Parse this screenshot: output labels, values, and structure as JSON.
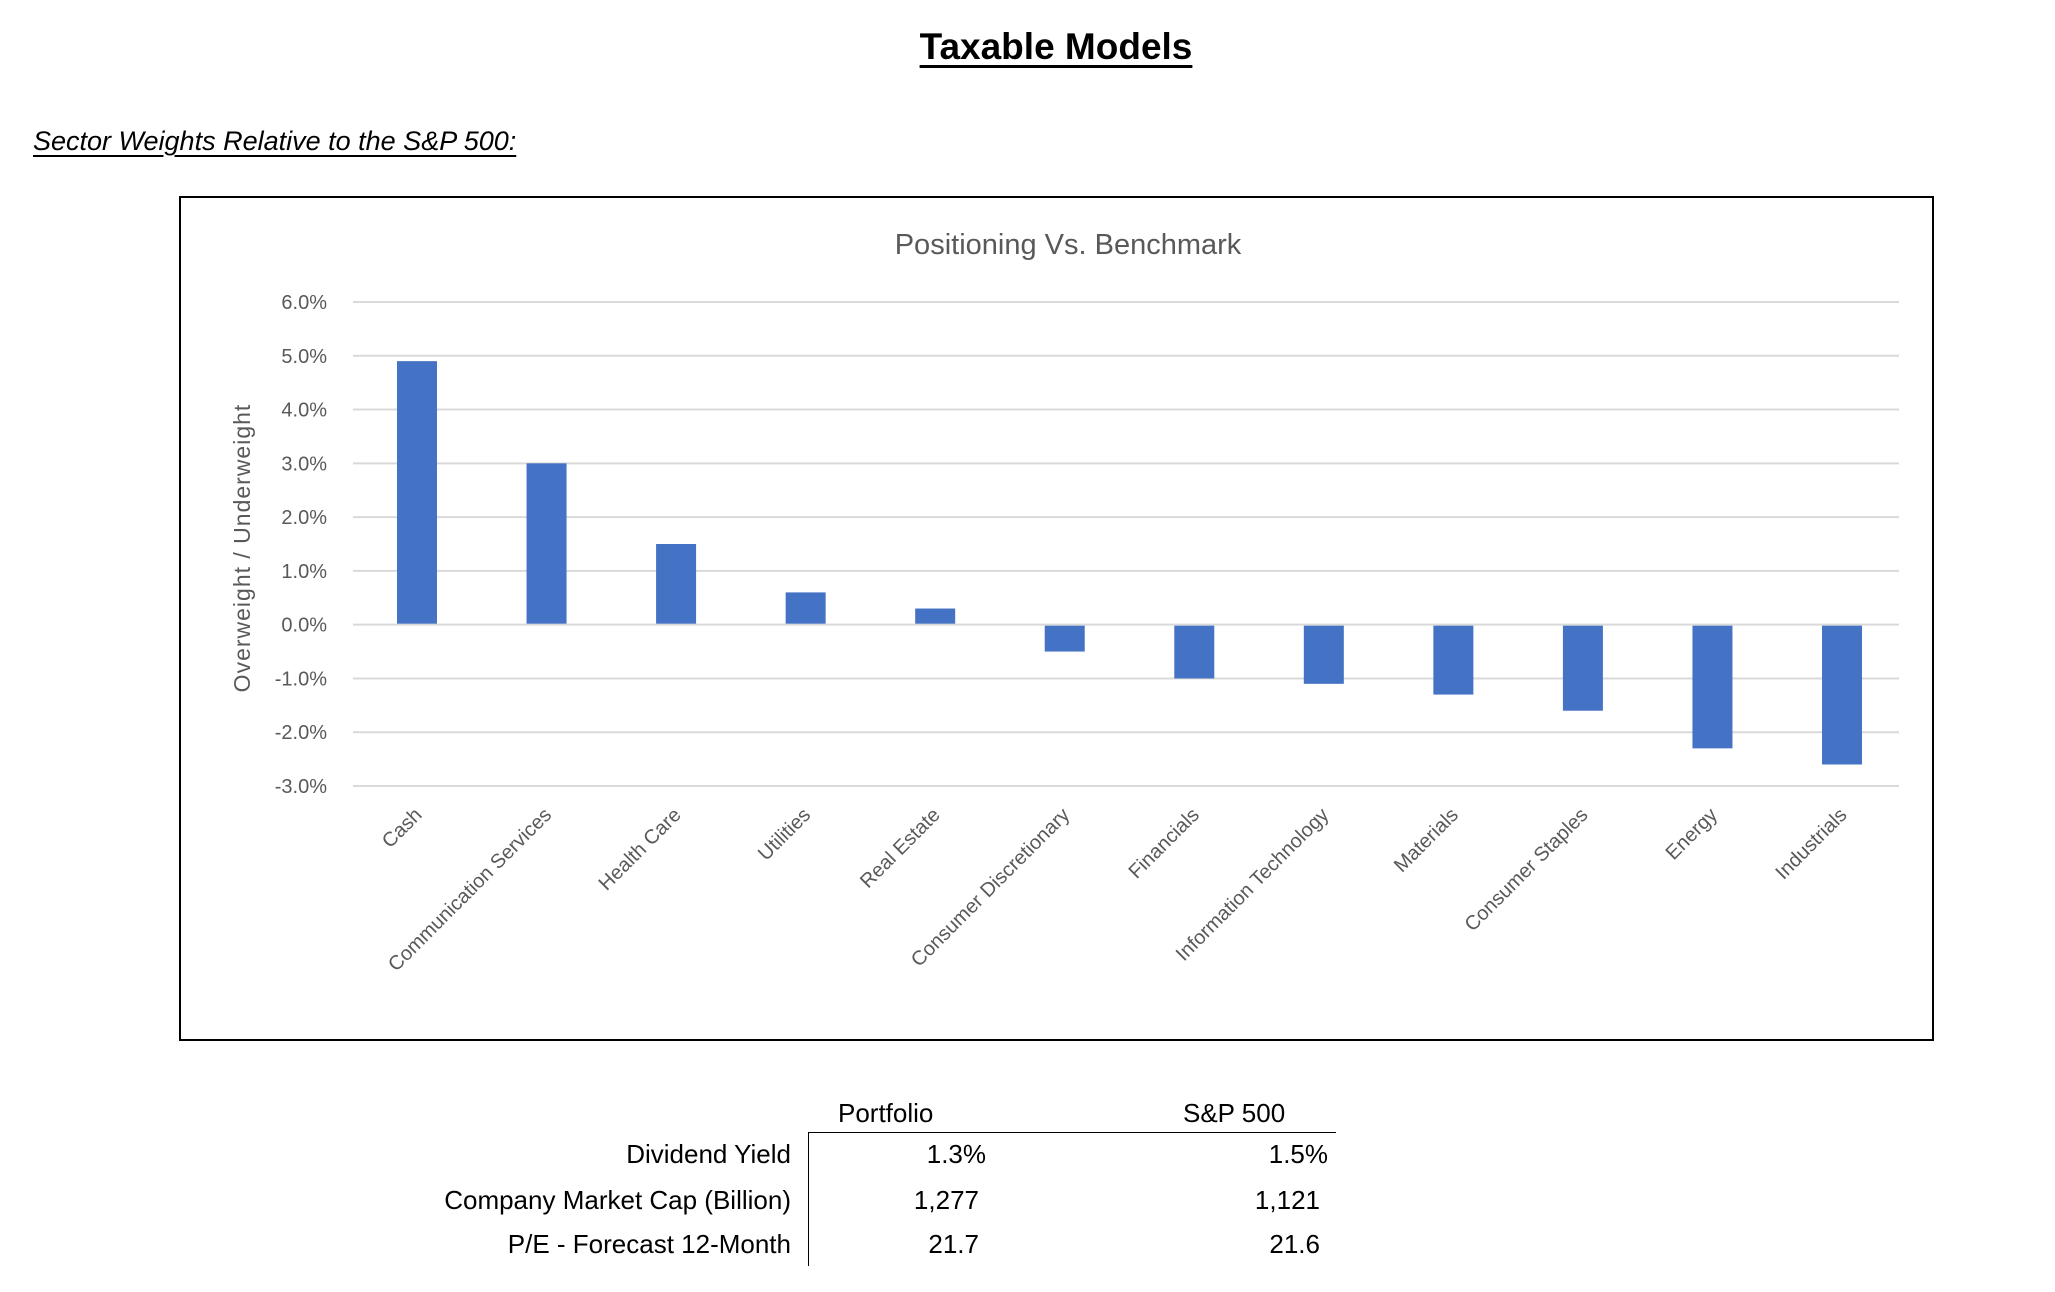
{
  "page": {
    "title": "Taxable Models",
    "subtitle": "Sector Weights Relative to the S&P 500:"
  },
  "chart_data": {
    "type": "bar",
    "title": "Positioning Vs. Benchmark",
    "xlabel": "",
    "ylabel": "Overweight / Underweight",
    "categories": [
      "Cash",
      "Communication Services",
      "Health Care",
      "Utilities",
      "Real Estate",
      "Consumer Discretionary",
      "Financials",
      "Information Technology",
      "Materials",
      "Consumer Staples",
      "Energy",
      "Industrials"
    ],
    "values": [
      4.9,
      3.0,
      1.5,
      0.6,
      0.3,
      -0.5,
      -1.0,
      -1.1,
      -1.3,
      -1.6,
      -2.3,
      -2.6
    ],
    "value_unit": "%",
    "ylim": [
      -3.0,
      6.0
    ],
    "yticks": [
      6.0,
      5.0,
      4.0,
      3.0,
      2.0,
      1.0,
      0.0,
      -1.0,
      -2.0,
      -3.0
    ],
    "ytick_labels": [
      "6.0%",
      "5.0%",
      "4.0%",
      "3.0%",
      "2.0%",
      "1.0%",
      "0.0%",
      "-1.0%",
      "-2.0%",
      "-3.0%"
    ],
    "grid": true,
    "legend": "none",
    "colors": {
      "bar": "#4472C4",
      "grid": "#D9D9D9",
      "text": "#595959"
    }
  },
  "stats_table": {
    "columns": [
      "Portfolio",
      "S&P 500"
    ],
    "rows": [
      {
        "label": "Dividend Yield",
        "portfolio": "1.3%",
        "sp500": "1.5%"
      },
      {
        "label": "Company Market Cap (Billion)",
        "portfolio": "1,277",
        "sp500": "1,121"
      },
      {
        "label": "P/E - Forecast 12-Month",
        "portfolio": "21.7",
        "sp500": "21.6"
      }
    ]
  }
}
